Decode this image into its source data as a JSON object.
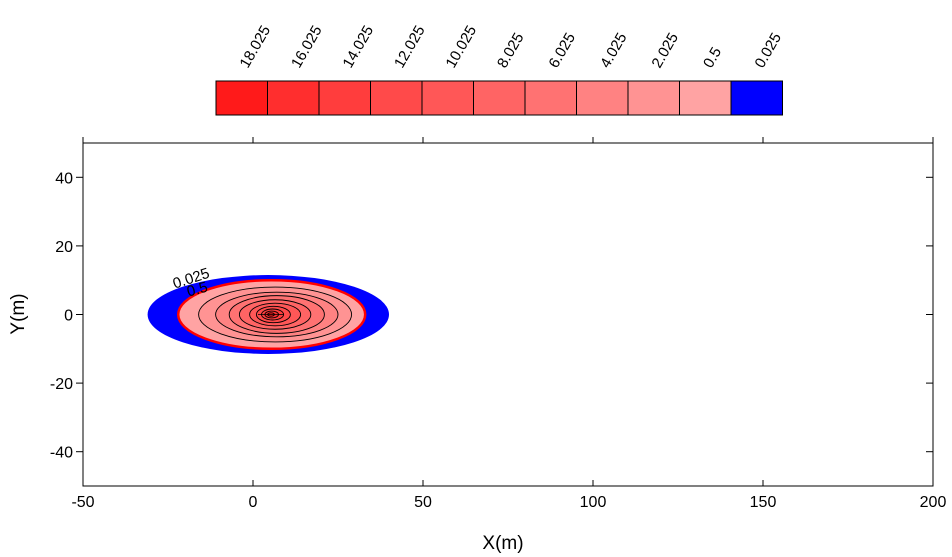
{
  "chart_data": {
    "type": "contour",
    "title": "",
    "xlabel": "X(m)",
    "ylabel": "Y(m)",
    "xlim": [
      -50,
      200
    ],
    "ylim": [
      -50,
      50
    ],
    "x_ticks": [
      "-50",
      "0",
      "50",
      "100",
      "150",
      "200"
    ],
    "y_ticks": [
      "40",
      "20",
      "0",
      "-20",
      "-40"
    ],
    "grid": false,
    "legend_position": "top",
    "legend": {
      "labels": [
        "18.025",
        "16.025",
        "14.025",
        "12.025",
        "10.025",
        "8.025",
        "6.025",
        "4.025",
        "2.025",
        "0.5",
        "0.025"
      ],
      "colors": [
        "#ff1a1a",
        "#ff2e2e",
        "#ff3d3d",
        "#ff4a4a",
        "#ff5757",
        "#ff6464",
        "#ff7272",
        "#ff8282",
        "#ff9393",
        "#ffa3a3",
        "#0000ff"
      ]
    },
    "contour_levels": [
      0.025,
      0.5,
      2.025,
      4.025,
      6.025,
      8.025,
      10.025,
      12.025,
      14.025,
      16.025,
      18.025
    ],
    "contour_labels": [
      "0.025",
      "0.5"
    ],
    "peak": {
      "x": 5,
      "y": 0
    },
    "contours": [
      {
        "level": 0.025,
        "color": "#0000ff",
        "x_min": -31,
        "x_max": 40,
        "y_min": -11.5,
        "y_max": 11.5
      },
      {
        "level": 0.5,
        "color": "#ffa3a3",
        "x_min": -22,
        "x_max": 33,
        "y_min": -10,
        "y_max": 10
      },
      {
        "level": 2.025,
        "color": "#ff9393",
        "x_min": -16,
        "x_max": 29,
        "y_min": -8,
        "y_max": 8
      },
      {
        "level": 4.025,
        "color": "#ff8282",
        "x_min": -11,
        "x_max": 25,
        "y_min": -6.5,
        "y_max": 6.5
      },
      {
        "level": 6.025,
        "color": "#ff7272",
        "x_min": -7,
        "x_max": 21,
        "y_min": -5.5,
        "y_max": 5.5
      },
      {
        "level": 8.025,
        "color": "#ff6464",
        "x_min": -4,
        "x_max": 17,
        "y_min": -4.3,
        "y_max": 4.3
      },
      {
        "level": 10.025,
        "color": "#ff5757",
        "x_min": -1,
        "x_max": 14,
        "y_min": -3.3,
        "y_max": 3.3
      },
      {
        "level": 12.025,
        "color": "#ff4a4a",
        "x_min": 1,
        "x_max": 11,
        "y_min": -2.4,
        "y_max": 2.4
      },
      {
        "level": 14.025,
        "color": "#ff3d3d",
        "x_min": 2.5,
        "x_max": 9,
        "y_min": -1.6,
        "y_max": 1.6
      },
      {
        "level": 16.025,
        "color": "#ff2e2e",
        "x_min": 3.5,
        "x_max": 7.5,
        "y_min": -1,
        "y_max": 1
      },
      {
        "level": 18.025,
        "color": "#ff1a1a",
        "x_min": 4.3,
        "x_max": 6.3,
        "y_min": -0.5,
        "y_max": 0.5
      }
    ]
  }
}
